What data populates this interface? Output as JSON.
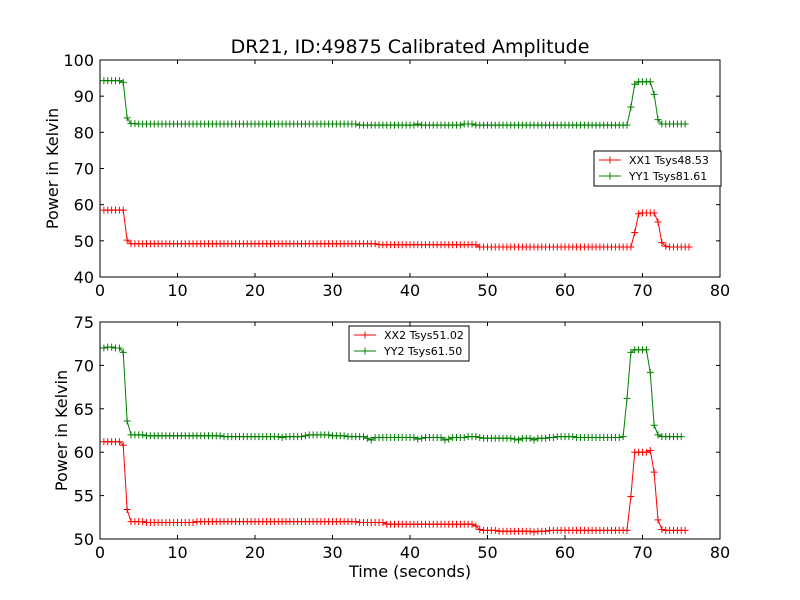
{
  "title": "DR21, ID:49875 Calibrated Amplitude",
  "colors": {
    "red": "#ff0000",
    "green": "#008000"
  },
  "chart_data": [
    {
      "type": "line",
      "title": "DR21, ID:49875 Calibrated Amplitude",
      "xlabel": "",
      "ylabel": "Power in Kelvin",
      "xlim": [
        0,
        80
      ],
      "ylim": [
        40,
        100
      ],
      "xticks": [
        0,
        10,
        20,
        30,
        40,
        50,
        60,
        70,
        80
      ],
      "yticks": [
        40,
        50,
        60,
        70,
        80,
        90,
        100
      ],
      "grid": false,
      "legend_position": "right-middle",
      "series": [
        {
          "name": "XX1 Tsys48.53",
          "color": "#ff0000",
          "marker": "+",
          "x_start": 0.5,
          "x_step": 0.5,
          "values": [
            58.5,
            58.5,
            58.5,
            58.5,
            58.5,
            58.5,
            50.2,
            49.2,
            49.2,
            49.2,
            49.2,
            49.2,
            49.2,
            49.2,
            49.2,
            49.2,
            49.2,
            49.2,
            49.2,
            49.2,
            49.2,
            49.2,
            49.2,
            49.2,
            49.2,
            49.2,
            49.2,
            49.2,
            49.2,
            49.2,
            49.2,
            49.2,
            49.2,
            49.2,
            49.2,
            49.2,
            49.2,
            49.2,
            49.2,
            49.2,
            49.2,
            49.2,
            49.2,
            49.2,
            49.2,
            49.2,
            49.2,
            49.2,
            49.2,
            49.2,
            49.2,
            49.2,
            49.2,
            49.2,
            49.2,
            49.2,
            49.2,
            49.2,
            49.2,
            49.2,
            49.2,
            49.2,
            49.2,
            49.2,
            49.2,
            49.2,
            49.2,
            49.2,
            49.2,
            49.2,
            49.2,
            48.9,
            48.9,
            48.9,
            48.9,
            48.9,
            48.9,
            48.9,
            48.9,
            48.9,
            48.9,
            48.9,
            48.9,
            48.9,
            48.9,
            48.9,
            48.9,
            48.9,
            48.9,
            48.9,
            48.9,
            48.9,
            48.9,
            48.9,
            48.9,
            49.0,
            48.9,
            48.3,
            48.3,
            48.3,
            48.3,
            48.3,
            48.3,
            48.3,
            48.3,
            48.3,
            48.3,
            48.3,
            48.3,
            48.3,
            48.3,
            48.3,
            48.3,
            48.3,
            48.3,
            48.3,
            48.3,
            48.3,
            48.3,
            48.3,
            48.3,
            48.3,
            48.3,
            48.3,
            48.3,
            48.3,
            48.3,
            48.3,
            48.3,
            48.3,
            48.3,
            48.3,
            48.3,
            48.3,
            48.3,
            48.3,
            48.3,
            52.3,
            57.5,
            57.7,
            57.7,
            57.7,
            57.7,
            55.2,
            49.5,
            48.5,
            48.3,
            48.3,
            48.3,
            48.3,
            48.3,
            48.3
          ]
        },
        {
          "name": "YY1 Tsys81.61",
          "color": "#008000",
          "marker": "+",
          "x_start": 0.5,
          "x_step": 0.5,
          "values": [
            94.3,
            94.3,
            94.3,
            94.3,
            94.3,
            93.8,
            84.0,
            82.4,
            82.4,
            82.3,
            82.3,
            82.3,
            82.3,
            82.3,
            82.3,
            82.3,
            82.3,
            82.3,
            82.3,
            82.3,
            82.3,
            82.3,
            82.3,
            82.3,
            82.3,
            82.3,
            82.3,
            82.3,
            82.3,
            82.3,
            82.3,
            82.3,
            82.3,
            82.3,
            82.3,
            82.3,
            82.3,
            82.3,
            82.3,
            82.3,
            82.3,
            82.3,
            82.3,
            82.3,
            82.3,
            82.3,
            82.3,
            82.3,
            82.3,
            82.3,
            82.3,
            82.3,
            82.3,
            82.3,
            82.3,
            82.3,
            82.3,
            82.3,
            82.3,
            82.3,
            82.3,
            82.3,
            82.3,
            82.3,
            82.3,
            82.3,
            82.0,
            82.0,
            82.0,
            82.0,
            82.0,
            82.0,
            82.0,
            82.0,
            82.0,
            82.0,
            82.0,
            82.0,
            82.0,
            82.0,
            82.0,
            82.3,
            82.0,
            82.0,
            82.0,
            82.0,
            82.0,
            82.0,
            82.0,
            82.0,
            82.0,
            82.0,
            82.0,
            82.3,
            82.3,
            82.3,
            82.0,
            82.0,
            82.0,
            82.0,
            82.0,
            82.0,
            82.0,
            82.0,
            82.0,
            82.0,
            82.0,
            82.0,
            82.0,
            82.0,
            82.0,
            82.0,
            82.0,
            82.0,
            82.0,
            82.0,
            82.0,
            82.0,
            82.0,
            82.0,
            82.0,
            82.0,
            82.0,
            82.0,
            82.0,
            82.0,
            82.0,
            82.0,
            82.0,
            82.0,
            82.0,
            82.0,
            82.0,
            82.0,
            82.0,
            82.0,
            87.0,
            93.3,
            94.0,
            94.0,
            94.0,
            94.0,
            90.5,
            83.5,
            82.3,
            82.3,
            82.3,
            82.3,
            82.3,
            82.3,
            82.3
          ]
        }
      ]
    },
    {
      "type": "line",
      "title": "",
      "xlabel": "Time (seconds)",
      "ylabel": "Power in Kelvin",
      "xlim": [
        0,
        80
      ],
      "ylim": [
        50,
        75
      ],
      "xticks": [
        0,
        10,
        20,
        30,
        40,
        50,
        60,
        70,
        80
      ],
      "yticks": [
        50,
        55,
        60,
        65,
        70,
        75
      ],
      "grid": false,
      "legend_position": "top-center",
      "series": [
        {
          "name": "XX2 Tsys51.02",
          "color": "#ff0000",
          "marker": "+",
          "x_start": 0.5,
          "x_step": 0.5,
          "values": [
            61.2,
            61.2,
            61.2,
            61.2,
            61.2,
            60.8,
            53.4,
            52.0,
            52.0,
            52.0,
            52.0,
            51.9,
            51.9,
            51.9,
            51.9,
            51.9,
            51.9,
            51.9,
            51.9,
            51.9,
            51.9,
            51.9,
            51.9,
            51.9,
            52.0,
            52.0,
            52.0,
            52.0,
            52.0,
            52.0,
            52.0,
            52.0,
            52.0,
            52.0,
            52.0,
            52.0,
            52.0,
            52.0,
            52.0,
            52.0,
            52.0,
            52.0,
            52.0,
            52.0,
            52.0,
            52.0,
            52.0,
            52.0,
            52.0,
            52.0,
            52.0,
            52.0,
            52.0,
            52.0,
            52.0,
            52.0,
            52.0,
            52.0,
            52.0,
            52.0,
            52.0,
            52.0,
            52.0,
            52.0,
            52.0,
            52.0,
            51.9,
            51.9,
            51.9,
            51.9,
            51.9,
            51.9,
            51.9,
            51.7,
            51.7,
            51.7,
            51.7,
            51.7,
            51.7,
            51.7,
            51.7,
            51.7,
            51.7,
            51.7,
            51.7,
            51.7,
            51.7,
            51.7,
            51.7,
            51.7,
            51.7,
            51.7,
            51.7,
            51.7,
            51.7,
            51.7,
            51.5,
            51.1,
            51.0,
            51.0,
            51.0,
            51.0,
            50.9,
            50.9,
            50.9,
            50.9,
            50.9,
            50.9,
            50.9,
            50.9,
            50.9,
            50.8,
            50.9,
            50.9,
            50.9,
            51.0,
            51.0,
            51.0,
            51.0,
            51.0,
            51.0,
            51.0,
            51.0,
            51.0,
            51.0,
            51.0,
            51.0,
            51.0,
            51.0,
            51.0,
            51.0,
            51.0,
            51.0,
            51.0,
            51.0,
            51.0,
            54.9,
            60.0,
            60.0,
            60.0,
            60.0,
            60.2,
            57.7,
            52.2,
            51.1,
            51.0,
            51.0,
            51.0,
            51.0,
            51.0,
            51.0
          ]
        },
        {
          "name": "YY2 Tsys61.50",
          "color": "#008000",
          "marker": "+",
          "x_start": 0.5,
          "x_step": 0.5,
          "values": [
            72.0,
            72.1,
            72.1,
            72.0,
            72.0,
            71.5,
            63.6,
            62.0,
            62.0,
            62.0,
            62.0,
            61.9,
            61.9,
            61.9,
            61.9,
            61.9,
            61.9,
            61.9,
            61.9,
            61.9,
            61.9,
            61.9,
            61.9,
            61.9,
            61.9,
            61.9,
            61.9,
            61.9,
            61.9,
            61.9,
            61.9,
            61.8,
            61.8,
            61.8,
            61.8,
            61.8,
            61.8,
            61.8,
            61.8,
            61.8,
            61.8,
            61.8,
            61.8,
            61.8,
            61.8,
            61.8,
            61.7,
            61.8,
            61.8,
            61.8,
            61.8,
            61.8,
            61.9,
            62.0,
            62.0,
            62.0,
            62.0,
            62.0,
            62.0,
            61.9,
            61.9,
            61.9,
            61.9,
            61.8,
            61.8,
            61.8,
            61.8,
            61.8,
            61.6,
            61.4,
            61.7,
            61.7,
            61.7,
            61.7,
            61.7,
            61.7,
            61.7,
            61.7,
            61.7,
            61.7,
            61.7,
            61.5,
            61.6,
            61.7,
            61.7,
            61.7,
            61.7,
            61.7,
            61.4,
            61.5,
            61.7,
            61.7,
            61.7,
            61.7,
            61.8,
            61.8,
            61.8,
            61.7,
            61.6,
            61.6,
            61.6,
            61.6,
            61.6,
            61.6,
            61.6,
            61.6,
            61.5,
            61.4,
            61.6,
            61.6,
            61.6,
            61.4,
            61.6,
            61.6,
            61.6,
            61.7,
            61.7,
            61.8,
            61.8,
            61.8,
            61.8,
            61.8,
            61.7,
            61.7,
            61.7,
            61.7,
            61.7,
            61.7,
            61.7,
            61.7,
            61.7,
            61.7,
            61.7,
            61.7,
            61.8,
            66.2,
            71.5,
            71.8,
            71.8,
            71.8,
            71.8,
            69.2,
            63.1,
            62.0,
            61.8,
            61.8,
            61.8,
            61.8,
            61.8,
            61.8
          ]
        }
      ]
    }
  ]
}
